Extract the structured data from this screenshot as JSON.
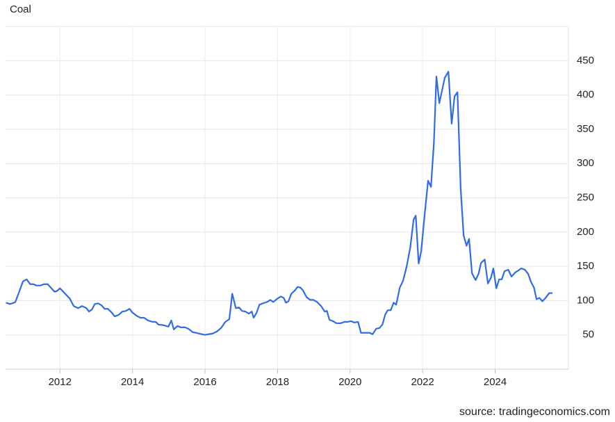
{
  "chart_data": {
    "type": "line",
    "title": "Coal",
    "source": "source: tradingeconomics.com",
    "x": [
      2010.51,
      2010.62,
      2010.74,
      2010.77,
      2010.89,
      2010.98,
      2011.08,
      2011.18,
      2011.27,
      2011.35,
      2011.46,
      2011.56,
      2011.66,
      2011.73,
      2011.85,
      2011.92,
      2012.0,
      2012.27,
      2012.38,
      2012.5,
      2012.61,
      2012.73,
      2012.8,
      2012.88,
      2012.96,
      2013.05,
      2013.15,
      2013.23,
      2013.32,
      2013.42,
      2013.51,
      2013.61,
      2013.72,
      2013.82,
      2013.92,
      2013.99,
      2014.11,
      2014.22,
      2014.32,
      2014.43,
      2014.55,
      2014.64,
      2014.72,
      2014.87,
      2014.99,
      2015.07,
      2015.14,
      2015.24,
      2015.33,
      2015.45,
      2015.54,
      2015.66,
      2015.75,
      2015.91,
      2016.0,
      2016.1,
      2016.21,
      2016.33,
      2016.44,
      2016.56,
      2016.67,
      2016.75,
      2016.85,
      2016.94,
      2017.02,
      2017.11,
      2017.21,
      2017.29,
      2017.34,
      2017.42,
      2017.5,
      2017.59,
      2017.71,
      2017.8,
      2017.88,
      2018.0,
      2018.09,
      2018.17,
      2018.23,
      2018.3,
      2018.38,
      2018.48,
      2018.55,
      2018.63,
      2018.7,
      2018.8,
      2018.9,
      2018.99,
      2019.09,
      2019.2,
      2019.3,
      2019.36,
      2019.43,
      2019.53,
      2019.62,
      2019.74,
      2019.84,
      2019.93,
      2020.03,
      2020.12,
      2020.22,
      2020.3,
      2020.41,
      2020.54,
      2020.62,
      2020.72,
      2020.81,
      2020.89,
      2020.97,
      2021.04,
      2021.12,
      2021.2,
      2021.27,
      2021.37,
      2021.46,
      2021.56,
      2021.66,
      2021.75,
      2021.81,
      2021.89,
      2021.96,
      2022.06,
      2022.15,
      2022.23,
      2022.31,
      2022.38,
      2022.46,
      2022.54,
      2022.61,
      2022.71,
      2022.8,
      2022.88,
      2022.96,
      2023.05,
      2023.13,
      2023.21,
      2023.28,
      2023.36,
      2023.46,
      2023.54,
      2023.61,
      2023.71,
      2023.8,
      2023.88,
      2023.95,
      2024.03,
      2024.11,
      2024.18,
      2024.26,
      2024.36,
      2024.45,
      2024.55,
      2024.64,
      2024.72,
      2024.82,
      2024.91,
      2024.99,
      2025.07,
      2025.14,
      2025.22,
      2025.3,
      2025.39,
      2025.49,
      2025.58
    ],
    "series": [
      {
        "name": "Coal",
        "color": "#2f6be4",
        "values": [
          97,
          95,
          97,
          98,
          115,
          128,
          131,
          124,
          124,
          122,
          122,
          124,
          124,
          120,
          113,
          114,
          118,
          103,
          92,
          89,
          92,
          89,
          84,
          87,
          95,
          96,
          93,
          88,
          88,
          83,
          77,
          79,
          84,
          85,
          88,
          83,
          78,
          75,
          75,
          71,
          69,
          69,
          65,
          64,
          62,
          71,
          58,
          63,
          61,
          61,
          59,
          54,
          53,
          51,
          50,
          51,
          52,
          55,
          60,
          69,
          73,
          110,
          89,
          90,
          85,
          84,
          81,
          84,
          75,
          82,
          94,
          96,
          98,
          101,
          98,
          103,
          106,
          104,
          97,
          99,
          110,
          115,
          120,
          119,
          115,
          105,
          101,
          101,
          98,
          92,
          84,
          85,
          72,
          70,
          67,
          67,
          69,
          69,
          70,
          68,
          69,
          53,
          53,
          53,
          51,
          59,
          60,
          65,
          80,
          86,
          86,
          97,
          94,
          119,
          129,
          150,
          178,
          218,
          224,
          154,
          172,
          228,
          275,
          266,
          330,
          427,
          388,
          408,
          425,
          434,
          358,
          398,
          404,
          262,
          195,
          180,
          190,
          140,
          130,
          139,
          155,
          160,
          125,
          133,
          147,
          118,
          131,
          131,
          143,
          145,
          135,
          141,
          144,
          147,
          145,
          139,
          127,
          119,
          102,
          104,
          99,
          104,
          111,
          111
        ]
      }
    ],
    "xlim": [
      2010.5,
      2026.02
    ],
    "xticks": [
      2012,
      2014,
      2016,
      2018,
      2020,
      2022,
      2024
    ],
    "ylim": [
      0,
      500
    ],
    "yticks": [
      50,
      100,
      150,
      200,
      250,
      300,
      350,
      400,
      450
    ],
    "grid": true
  }
}
